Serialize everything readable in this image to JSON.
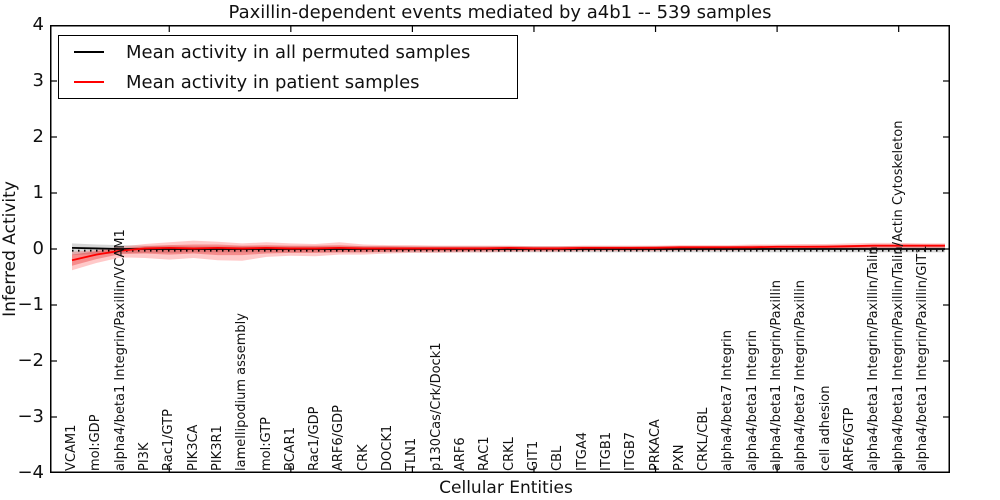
{
  "chart_data": {
    "type": "line",
    "title": "Paxillin-dependent events mediated by a4b1 -- 539 samples",
    "xlabel": "Cellular Entities",
    "ylabel": "Inferred Activity",
    "ylim": [
      -4,
      4
    ],
    "grid": false,
    "legend_position": "upper left",
    "yticks": [
      {
        "value": 4,
        "label": "4"
      },
      {
        "value": 3,
        "label": "3"
      },
      {
        "value": 2,
        "label": "2"
      },
      {
        "value": 1,
        "label": "1"
      },
      {
        "value": 0,
        "label": "0"
      },
      {
        "value": -1,
        "label": "−1"
      },
      {
        "value": -2,
        "label": "−2"
      },
      {
        "value": -3,
        "label": "−3"
      },
      {
        "value": -4,
        "label": "−4"
      }
    ],
    "xtick_indices": [
      4,
      9,
      14,
      19,
      24,
      29,
      34
    ],
    "categories": [
      "VCAM1",
      "mol:GDP",
      "alpha4/beta1 Integrin/Paxillin/VCAM1",
      "PI3K",
      "Rac1/GTP",
      "PIK3CA",
      "PIK3R1",
      "lamellipodium assembly",
      "mol:GTP",
      "BCAR1",
      "Rac1/GDP",
      "ARF6/GDP",
      "CRK",
      "DOCK1",
      "TLN1",
      "p130Cas/Crk/Dock1",
      "ARF6",
      "RAC1",
      "CRKL",
      "GIT1",
      "CBL",
      "ITGA4",
      "ITGB1",
      "ITGB7",
      "PRKACA",
      "PXN",
      "CRKL/CBL",
      "alpha4/beta7 Integrin",
      "alpha4/beta1 Integrin",
      "alpha4/beta1 Integrin/Paxillin",
      "alpha4/beta7 Integrin/Paxillin",
      "cell adhesion",
      "ARF6/GTP",
      "alpha4/beta1 Integrin/Paxillin/Talin",
      "alpha4/beta1 Integrin/Paxillin/Talin/Actin Cytoskeleton",
      "alpha4/beta1 Integrin/Paxillin/GIT1"
    ],
    "legend": [
      {
        "label": "Mean activity in all permuted samples",
        "color": "#000000"
      },
      {
        "label": "Mean activity in patient samples",
        "color": "#ff0000"
      }
    ],
    "series": [
      {
        "name": "permuted-mean",
        "color": "#000000",
        "style": "solid",
        "width": 1.8,
        "values": [
          0.02,
          0.01,
          0,
          0,
          0,
          0,
          0,
          0,
          0,
          0,
          0,
          0,
          0,
          0,
          0,
          0,
          0,
          0,
          0,
          0,
          0,
          0,
          0,
          0,
          0,
          0,
          0,
          0,
          0,
          0,
          0,
          0,
          0,
          0,
          0,
          0
        ]
      },
      {
        "name": "permuted-baseline",
        "color": "#000000",
        "style": "dotted",
        "width": 1.8,
        "values": [
          -0.03,
          -0.03,
          -0.03,
          -0.03,
          -0.03,
          -0.03,
          -0.03,
          -0.03,
          -0.03,
          -0.03,
          -0.03,
          -0.03,
          -0.03,
          -0.03,
          -0.03,
          -0.03,
          -0.03,
          -0.03,
          -0.03,
          -0.03,
          -0.03,
          -0.03,
          -0.03,
          -0.03,
          -0.03,
          -0.03,
          -0.03,
          -0.03,
          -0.03,
          -0.03,
          -0.03,
          -0.03,
          -0.03,
          -0.03,
          -0.03,
          -0.03
        ]
      },
      {
        "name": "patient-mean",
        "color": "#ff0000",
        "style": "solid",
        "width": 1.8,
        "values": [
          -0.2,
          -0.1,
          -0.03,
          0.01,
          0.02,
          0.01,
          0.02,
          0.01,
          0.02,
          0.01,
          0.01,
          0.02,
          0.01,
          0.01,
          0.01,
          0.01,
          0.01,
          0.01,
          0.02,
          0.01,
          0.01,
          0.02,
          0.02,
          0.02,
          0.02,
          0.03,
          0.03,
          0.03,
          0.03,
          0.04,
          0.04,
          0.04,
          0.05,
          0.06,
          0.06,
          0.06
        ]
      }
    ],
    "bands": [
      {
        "name": "permuted-std-band",
        "color": "rgba(0,0,0,0.16)",
        "lo": [
          -0.11,
          -0.09,
          -0.08,
          -0.07,
          -0.07,
          -0.06,
          -0.06,
          -0.06,
          -0.06,
          -0.06,
          -0.06,
          -0.06,
          -0.06,
          -0.06,
          -0.06,
          -0.06,
          -0.06,
          -0.06,
          -0.06,
          -0.06,
          -0.06,
          -0.06,
          -0.06,
          -0.06,
          -0.06,
          -0.06,
          -0.06,
          -0.06,
          -0.06,
          -0.06,
          -0.06,
          -0.06,
          -0.06,
          -0.06,
          -0.06,
          -0.06
        ],
        "hi": [
          0.1,
          0.08,
          0.07,
          0.06,
          0.06,
          0.05,
          0.05,
          0.05,
          0.05,
          0.05,
          0.05,
          0.05,
          0.05,
          0.05,
          0.05,
          0.05,
          0.05,
          0.05,
          0.05,
          0.05,
          0.05,
          0.05,
          0.05,
          0.05,
          0.05,
          0.05,
          0.05,
          0.05,
          0.05,
          0.05,
          0.05,
          0.05,
          0.05,
          0.05,
          0.05,
          0.05
        ]
      },
      {
        "name": "patient-band-outer",
        "color": "rgba(255,60,60,0.28)",
        "lo": [
          -0.38,
          -0.25,
          -0.15,
          -0.16,
          -0.19,
          -0.16,
          -0.2,
          -0.21,
          -0.14,
          -0.12,
          -0.13,
          -0.1,
          -0.1,
          -0.08,
          -0.07,
          -0.07,
          -0.06,
          -0.06,
          -0.05,
          -0.05,
          -0.05,
          -0.04,
          -0.04,
          -0.04,
          -0.04,
          -0.03,
          -0.03,
          -0.03,
          -0.02,
          -0.02,
          -0.01,
          -0.01,
          0.0,
          0.01,
          0.02,
          0.02
        ],
        "hi": [
          -0.05,
          -0.02,
          0.04,
          0.09,
          0.12,
          0.15,
          0.13,
          0.1,
          0.12,
          0.1,
          0.09,
          0.12,
          0.08,
          0.07,
          0.07,
          0.06,
          0.06,
          0.06,
          0.06,
          0.05,
          0.05,
          0.06,
          0.06,
          0.06,
          0.06,
          0.07,
          0.07,
          0.07,
          0.08,
          0.08,
          0.09,
          0.09,
          0.1,
          0.11,
          0.11,
          0.1
        ]
      },
      {
        "name": "patient-band-inner",
        "color": "rgba(230,30,30,0.35)",
        "lo": [
          -0.3,
          -0.18,
          -0.09,
          -0.08,
          -0.1,
          -0.08,
          -0.11,
          -0.11,
          -0.08,
          -0.07,
          -0.07,
          -0.06,
          -0.06,
          -0.05,
          -0.04,
          -0.04,
          -0.04,
          -0.03,
          -0.03,
          -0.03,
          -0.03,
          -0.02,
          -0.02,
          -0.02,
          -0.02,
          -0.01,
          -0.01,
          -0.01,
          0.0,
          0.0,
          0.01,
          0.01,
          0.02,
          0.03,
          0.03,
          0.03
        ],
        "hi": [
          -0.1,
          -0.04,
          0.01,
          0.05,
          0.07,
          0.08,
          0.08,
          0.06,
          0.07,
          0.06,
          0.06,
          0.07,
          0.05,
          0.05,
          0.04,
          0.04,
          0.04,
          0.04,
          0.04,
          0.04,
          0.04,
          0.04,
          0.04,
          0.04,
          0.05,
          0.05,
          0.05,
          0.05,
          0.06,
          0.06,
          0.06,
          0.07,
          0.07,
          0.08,
          0.08,
          0.08
        ]
      }
    ]
  }
}
